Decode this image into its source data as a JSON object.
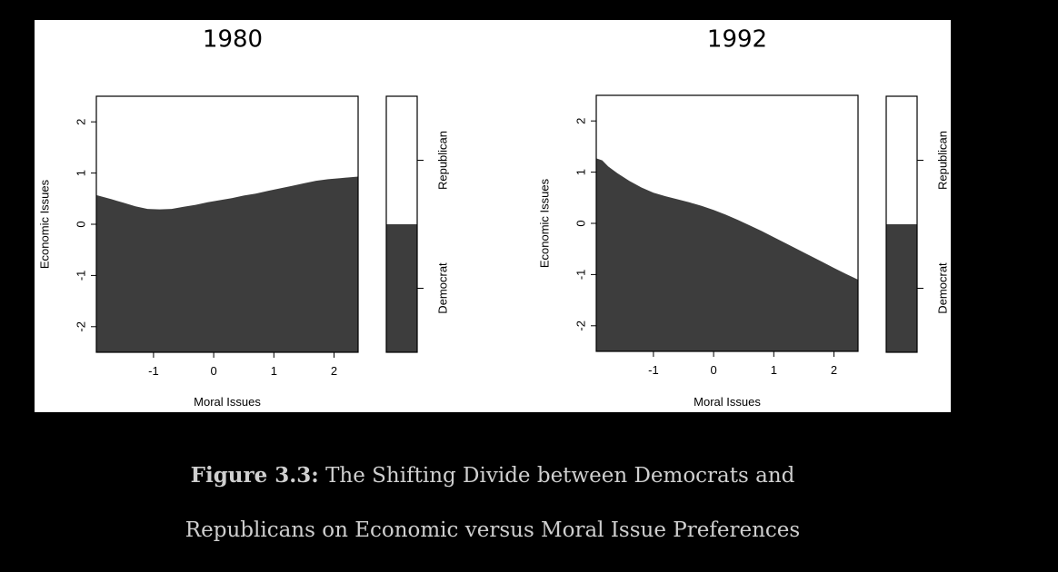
{
  "chart_data": [
    {
      "type": "area",
      "title": "1980",
      "xlabel": "Moral Issues",
      "ylabel": "Economic Issues",
      "xlim": [
        -1.95,
        2.4
      ],
      "ylim": [
        -2.5,
        2.5
      ],
      "xticks": [
        -1,
        0,
        1,
        2
      ],
      "yticks": [
        -2,
        -1,
        0,
        1,
        2
      ],
      "boundary": {
        "x": [
          -1.95,
          -1.7,
          -1.5,
          -1.3,
          -1.1,
          -0.9,
          -0.7,
          -0.5,
          -0.3,
          -0.1,
          0.1,
          0.3,
          0.5,
          0.7,
          0.9,
          1.1,
          1.3,
          1.5,
          1.7,
          1.9,
          2.1,
          2.4
        ],
        "y": [
          0.57,
          0.49,
          0.42,
          0.35,
          0.3,
          0.29,
          0.3,
          0.34,
          0.38,
          0.43,
          0.47,
          0.51,
          0.56,
          0.6,
          0.65,
          0.7,
          0.75,
          0.8,
          0.85,
          0.88,
          0.9,
          0.93
        ]
      },
      "below_class": "Democrat",
      "above_class": "Republican",
      "legend": {
        "labels": [
          "Democrat",
          "Republican"
        ],
        "colors": [
          "#3d3d3d",
          "#ffffff"
        ]
      }
    },
    {
      "type": "area",
      "title": "1992",
      "xlabel": "Moral Issues",
      "ylabel": "Economic Issues",
      "xlim": [
        -1.95,
        2.4
      ],
      "ylim": [
        -2.5,
        2.5
      ],
      "xticks": [
        -1,
        0,
        1,
        2
      ],
      "yticks": [
        -2,
        -1,
        0,
        1,
        2
      ],
      "boundary": {
        "x": [
          -1.95,
          -1.85,
          -1.75,
          -1.6,
          -1.4,
          -1.2,
          -1.0,
          -0.8,
          -0.6,
          -0.4,
          -0.2,
          0.0,
          0.2,
          0.4,
          0.6,
          0.8,
          1.0,
          1.2,
          1.4,
          1.6,
          1.8,
          2.0,
          2.2,
          2.4
        ],
        "y": [
          1.27,
          1.23,
          1.11,
          0.98,
          0.83,
          0.7,
          0.6,
          0.53,
          0.47,
          0.41,
          0.34,
          0.26,
          0.17,
          0.07,
          -0.04,
          -0.15,
          -0.27,
          -0.39,
          -0.51,
          -0.63,
          -0.75,
          -0.87,
          -0.99,
          -1.1
        ]
      },
      "below_class": "Democrat",
      "above_class": "Republican",
      "legend": {
        "labels": [
          "Democrat",
          "Republican"
        ],
        "colors": [
          "#3d3d3d",
          "#ffffff"
        ]
      }
    }
  ],
  "caption": {
    "label": "Figure 3.3:",
    "line1_rest": " The Shifting Divide between Democrats and",
    "line2": "Republicans on Economic versus Moral Issue Preferences"
  },
  "colors": {
    "fill": "#3d3d3d",
    "background": "#000000",
    "caption_text": "#cfcfcf"
  }
}
